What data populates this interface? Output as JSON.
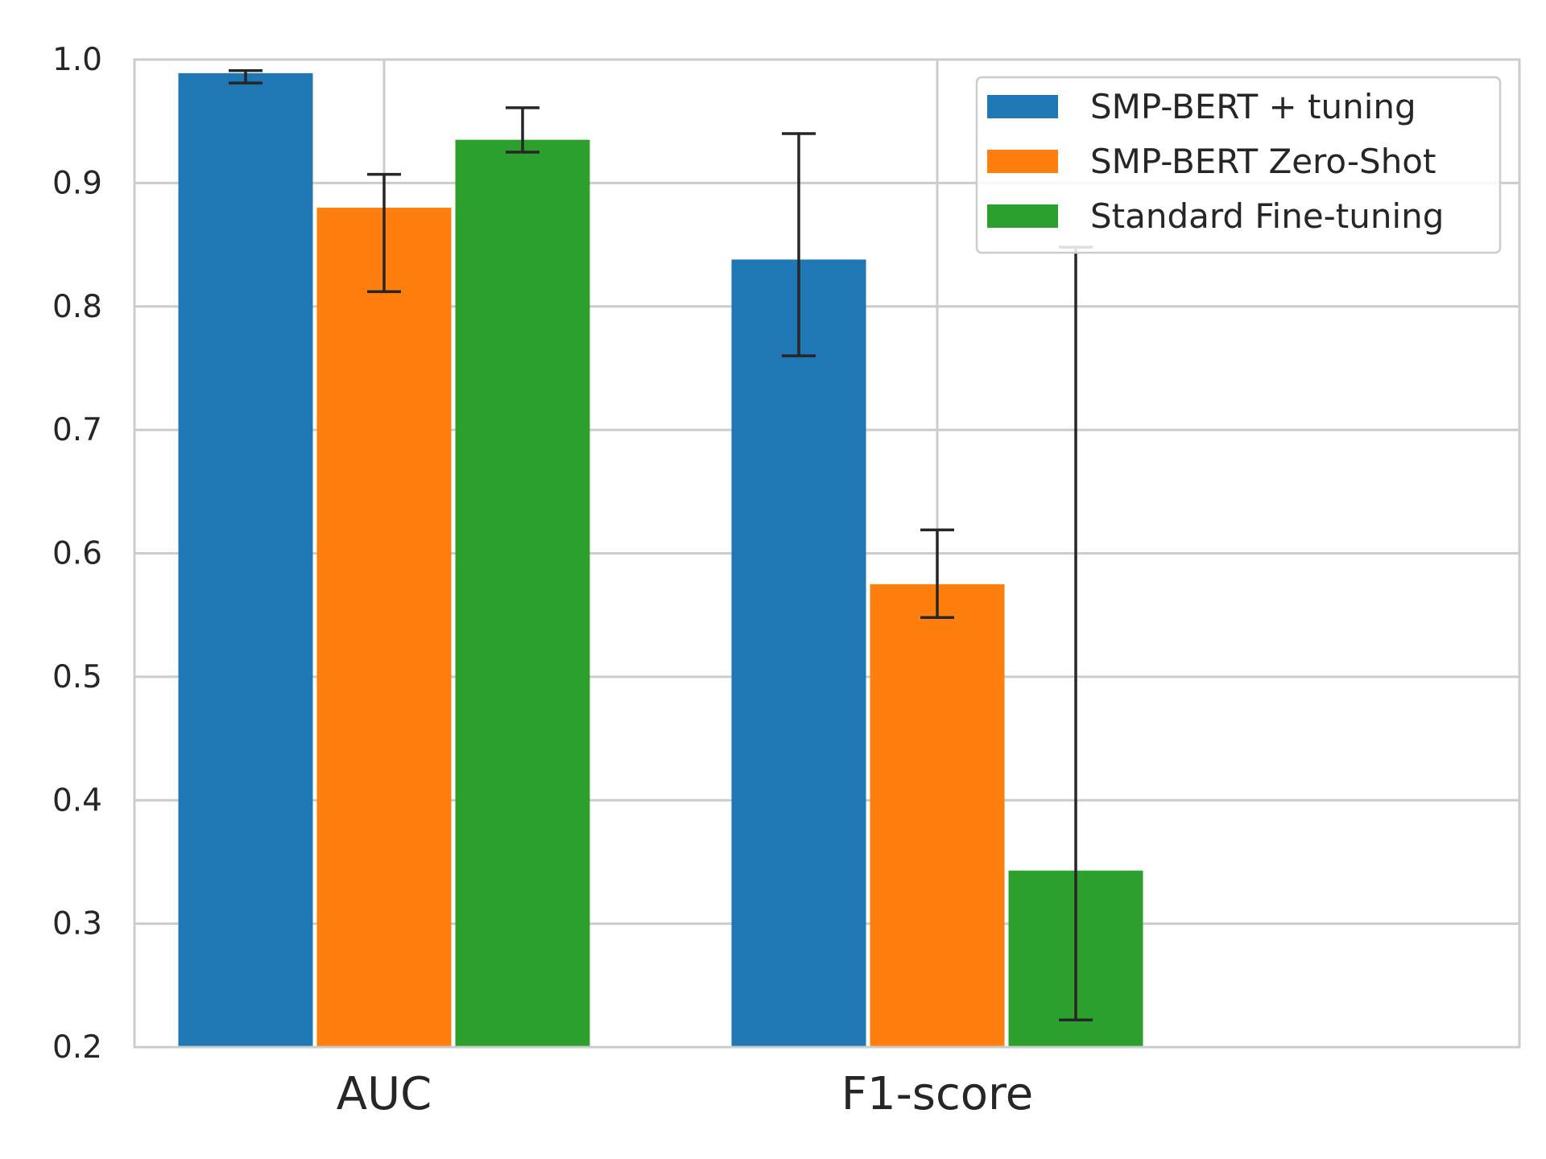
{
  "chart_data": {
    "type": "bar",
    "title": "",
    "xlabel": "",
    "ylabel": "",
    "ylim": [
      0.2,
      1.0
    ],
    "yticks": [
      "0.2",
      "0.3",
      "0.4",
      "0.5",
      "0.6",
      "0.7",
      "0.8",
      "0.9",
      "1.0"
    ],
    "grid": true,
    "legend_position": "top-right",
    "categories": [
      "AUC",
      "F1-score"
    ],
    "series": [
      {
        "name": "SMP-BERT + tuning",
        "color": "#1f77b4",
        "values": [
          0.989,
          0.838
        ],
        "error_low": [
          0.981,
          0.76
        ],
        "error_high": [
          0.991,
          0.94
        ]
      },
      {
        "name": "SMP-BERT Zero-Shot",
        "color": "#ff7f0e",
        "values": [
          0.88,
          0.575
        ],
        "error_low": [
          0.812,
          0.548
        ],
        "error_high": [
          0.907,
          0.619
        ]
      },
      {
        "name": "Standard Fine-tuning",
        "color": "#2ca02c",
        "values": [
          0.935,
          0.343
        ],
        "error_low": [
          0.925,
          0.222
        ],
        "error_high": [
          0.961,
          0.848
        ]
      }
    ]
  }
}
